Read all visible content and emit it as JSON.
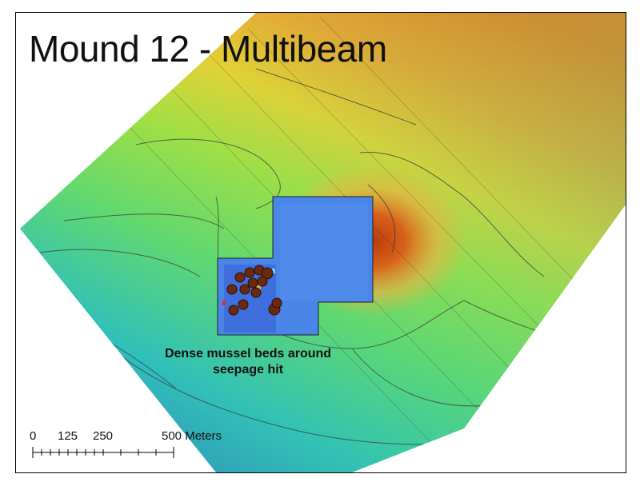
{
  "map": {
    "title": "Mound 12 - Multibeam",
    "annotation": {
      "line1": "Dense mussel beds around",
      "line2": "seepage hit"
    },
    "scale_bar": {
      "labels": [
        "0",
        "125",
        "250",
        "500 Meters"
      ]
    },
    "colors": {
      "deep": "#2e7fe0",
      "shallow_mid": "#7ae05a",
      "mound_top": "#c84a10",
      "survey_patch": "#4a86e8",
      "mussel_marker": "#6b2a10"
    }
  }
}
